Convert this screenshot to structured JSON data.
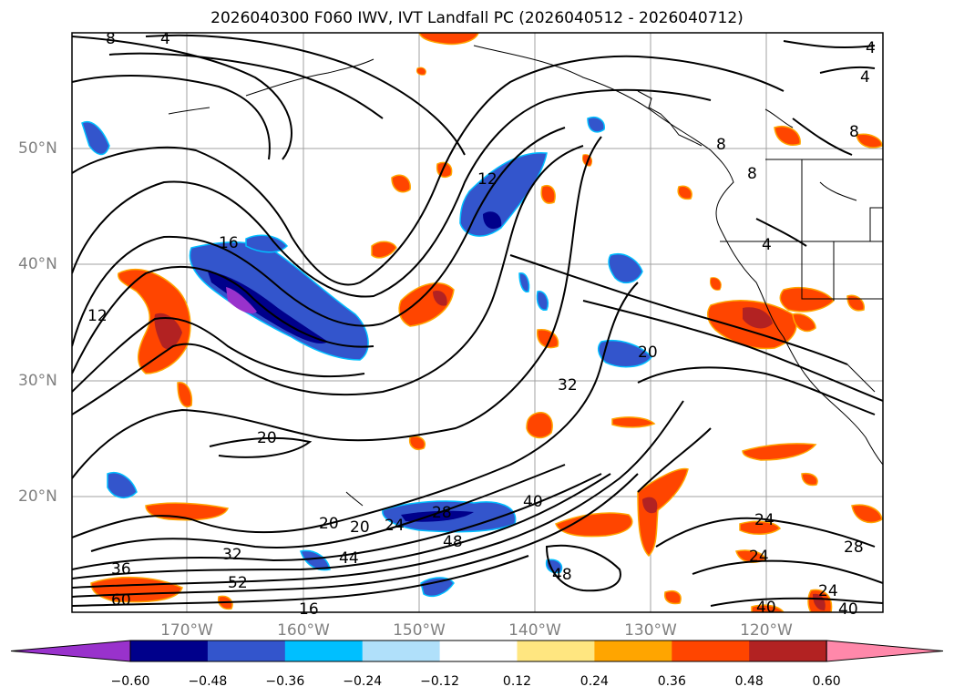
{
  "title": "2026040300 F060 IWV, IVT Landfall PC (2026040512 - 2026040712)",
  "lat_labels": [
    "50°N",
    "40°N",
    "30°N",
    "20°N"
  ],
  "lon_labels": [
    "170°W",
    "160°W",
    "150°W",
    "140°W",
    "130°W",
    "120°W"
  ],
  "contour_labels": [
    "8",
    "4",
    "16",
    "12",
    "20",
    "32",
    "20",
    "40",
    "48",
    "44",
    "52",
    "36",
    "32",
    "60",
    "20",
    "20",
    "24",
    "28",
    "48",
    "24",
    "24",
    "28",
    "24",
    "40",
    "40",
    "16",
    "12",
    "8",
    "4",
    "4",
    "8",
    "4",
    "8"
  ],
  "colorbar": {
    "ticks": [
      "−0.60",
      "−0.48",
      "−0.36",
      "−0.24",
      "−0.12",
      "0.12",
      "0.24",
      "0.36",
      "0.48",
      "0.60"
    ],
    "colors": [
      "#9932cc",
      "#00008b",
      "#3355cc",
      "#00bfff",
      "#b0e0fa",
      "#ffffff",
      "#ffe680",
      "#ffa500",
      "#ff4500",
      "#b22222",
      "#ff88aa"
    ]
  }
}
